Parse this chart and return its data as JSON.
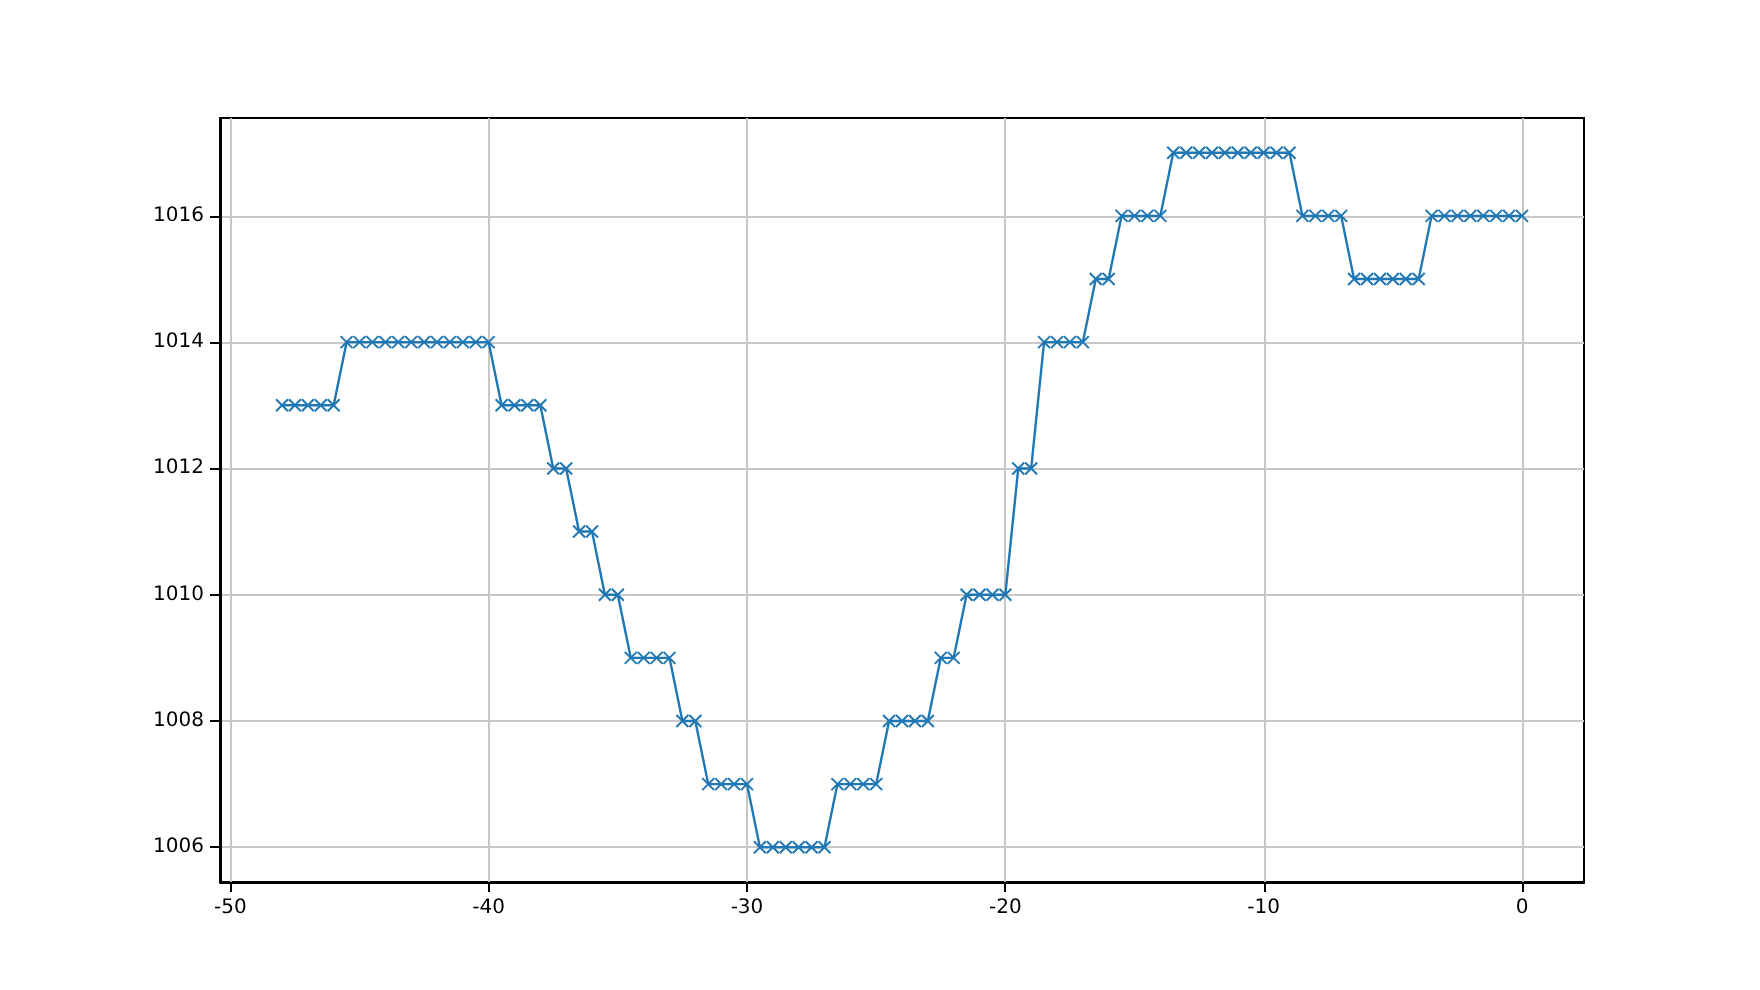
{
  "chart_data": {
    "type": "line",
    "x": [
      -48,
      -47.5,
      -47,
      -46.5,
      -46,
      -45.5,
      -45,
      -44.5,
      -44,
      -43.5,
      -43,
      -42.5,
      -42,
      -41.5,
      -41,
      -40.5,
      -40,
      -39.5,
      -39,
      -38.5,
      -38,
      -37.5,
      -37,
      -36.5,
      -36,
      -35.5,
      -35,
      -34.5,
      -34,
      -33.5,
      -33,
      -32.5,
      -32,
      -31.5,
      -31,
      -30.5,
      -30,
      -29.5,
      -29,
      -28.5,
      -28,
      -27.5,
      -27,
      -26.5,
      -26,
      -25.5,
      -25,
      -24.5,
      -24,
      -23.5,
      -23,
      -22.5,
      -22,
      -21.5,
      -21,
      -20.5,
      -20,
      -19.5,
      -19,
      -18.5,
      -18,
      -17.5,
      -17,
      -16.5,
      -16,
      -15.5,
      -15,
      -14.5,
      -14,
      -13.5,
      -13,
      -12.5,
      -12,
      -11.5,
      -11,
      -10.5,
      -10,
      -9.5,
      -9,
      -8.5,
      -8,
      -7.5,
      -7,
      -6.5,
      -6,
      -5.5,
      -5,
      -4.5,
      -4,
      -3.5,
      -3,
      -2.5,
      -2,
      -1.5,
      -1,
      -0.5,
      0
    ],
    "series": [
      {
        "color": "#1f77b4",
        "values": [
          1013,
          1013,
          1013,
          1013,
          1013,
          1014,
          1014,
          1014,
          1014,
          1014,
          1014,
          1014,
          1014,
          1014,
          1014,
          1014,
          1014,
          1013,
          1013,
          1013,
          1013,
          1012,
          1012,
          1011,
          1011,
          1010,
          1010,
          1009,
          1009,
          1009,
          1009,
          1008,
          1008,
          1007,
          1007,
          1007,
          1007,
          1006,
          1006,
          1006,
          1006,
          1006,
          1006,
          1007,
          1007,
          1007,
          1007,
          1008,
          1008,
          1008,
          1008,
          1009,
          1009,
          1010,
          1010,
          1010,
          1010,
          1012,
          1012,
          1014,
          1014,
          1014,
          1014,
          1015,
          1015,
          1016,
          1016,
          1016,
          1016,
          1017,
          1017,
          1017,
          1017,
          1017,
          1017,
          1017,
          1017,
          1017,
          1017,
          1016,
          1016,
          1016,
          1016,
          1015,
          1015,
          1015,
          1015,
          1015,
          1015,
          1016,
          1016,
          1016,
          1016,
          1016,
          1016,
          1016,
          1016
        ]
      }
    ],
    "xlim": [
      -50.4,
      2.4
    ],
    "xticks": [
      -50,
      -40,
      -30,
      -20,
      -10,
      0
    ],
    "ylim": [
      1005.45,
      1017.55
    ],
    "yticks": [
      1006,
      1008,
      1010,
      1012,
      1014,
      1016
    ],
    "grid": true,
    "marker": "cross",
    "line_style": "solid"
  }
}
